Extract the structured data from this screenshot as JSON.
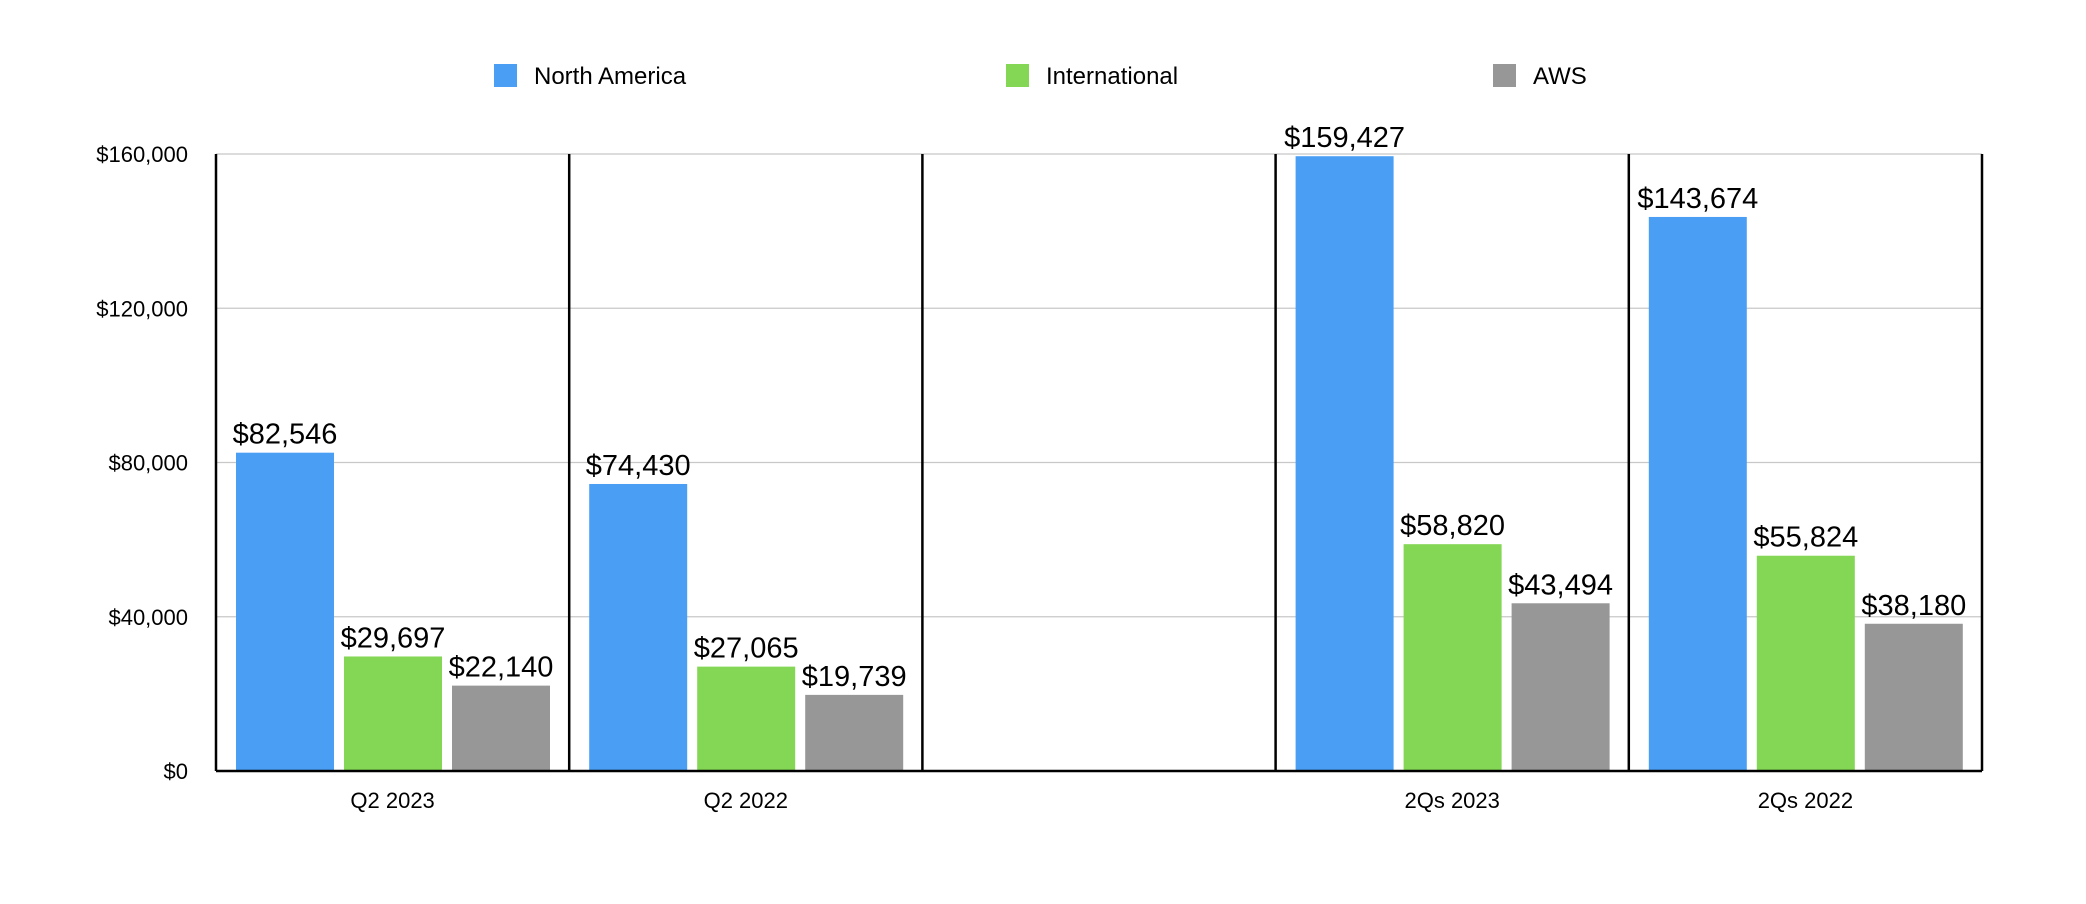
{
  "chart_data": {
    "type": "bar",
    "categories": [
      "Q2 2023",
      "Q2 2022",
      "",
      "2Qs 2023",
      "2Qs 2022"
    ],
    "series": [
      {
        "name": "North America",
        "color": "#4a9ff5",
        "values": [
          82546,
          74430,
          null,
          159427,
          143674
        ],
        "labels": [
          "$82,546",
          "$74,430",
          "",
          "$159,427",
          "$143,674"
        ]
      },
      {
        "name": "International",
        "color": "#84d655",
        "values": [
          29697,
          27065,
          null,
          58820,
          55824
        ],
        "labels": [
          "$29,697",
          "$27,065",
          "",
          "$58,820",
          "$55,824"
        ]
      },
      {
        "name": "AWS",
        "color": "#979797",
        "values": [
          22140,
          19739,
          null,
          43494,
          38180
        ],
        "labels": [
          "$22,140",
          "$19,739",
          "",
          "$43,494",
          "$38,180"
        ]
      }
    ],
    "yticks": [
      0,
      40000,
      80000,
      120000,
      160000
    ],
    "ytick_labels": [
      "$0",
      "$40,000",
      "$80,000",
      "$120,000",
      "$160,000"
    ],
    "ylim": [
      0,
      160000
    ],
    "grid": true,
    "legend_position": "top-center"
  }
}
